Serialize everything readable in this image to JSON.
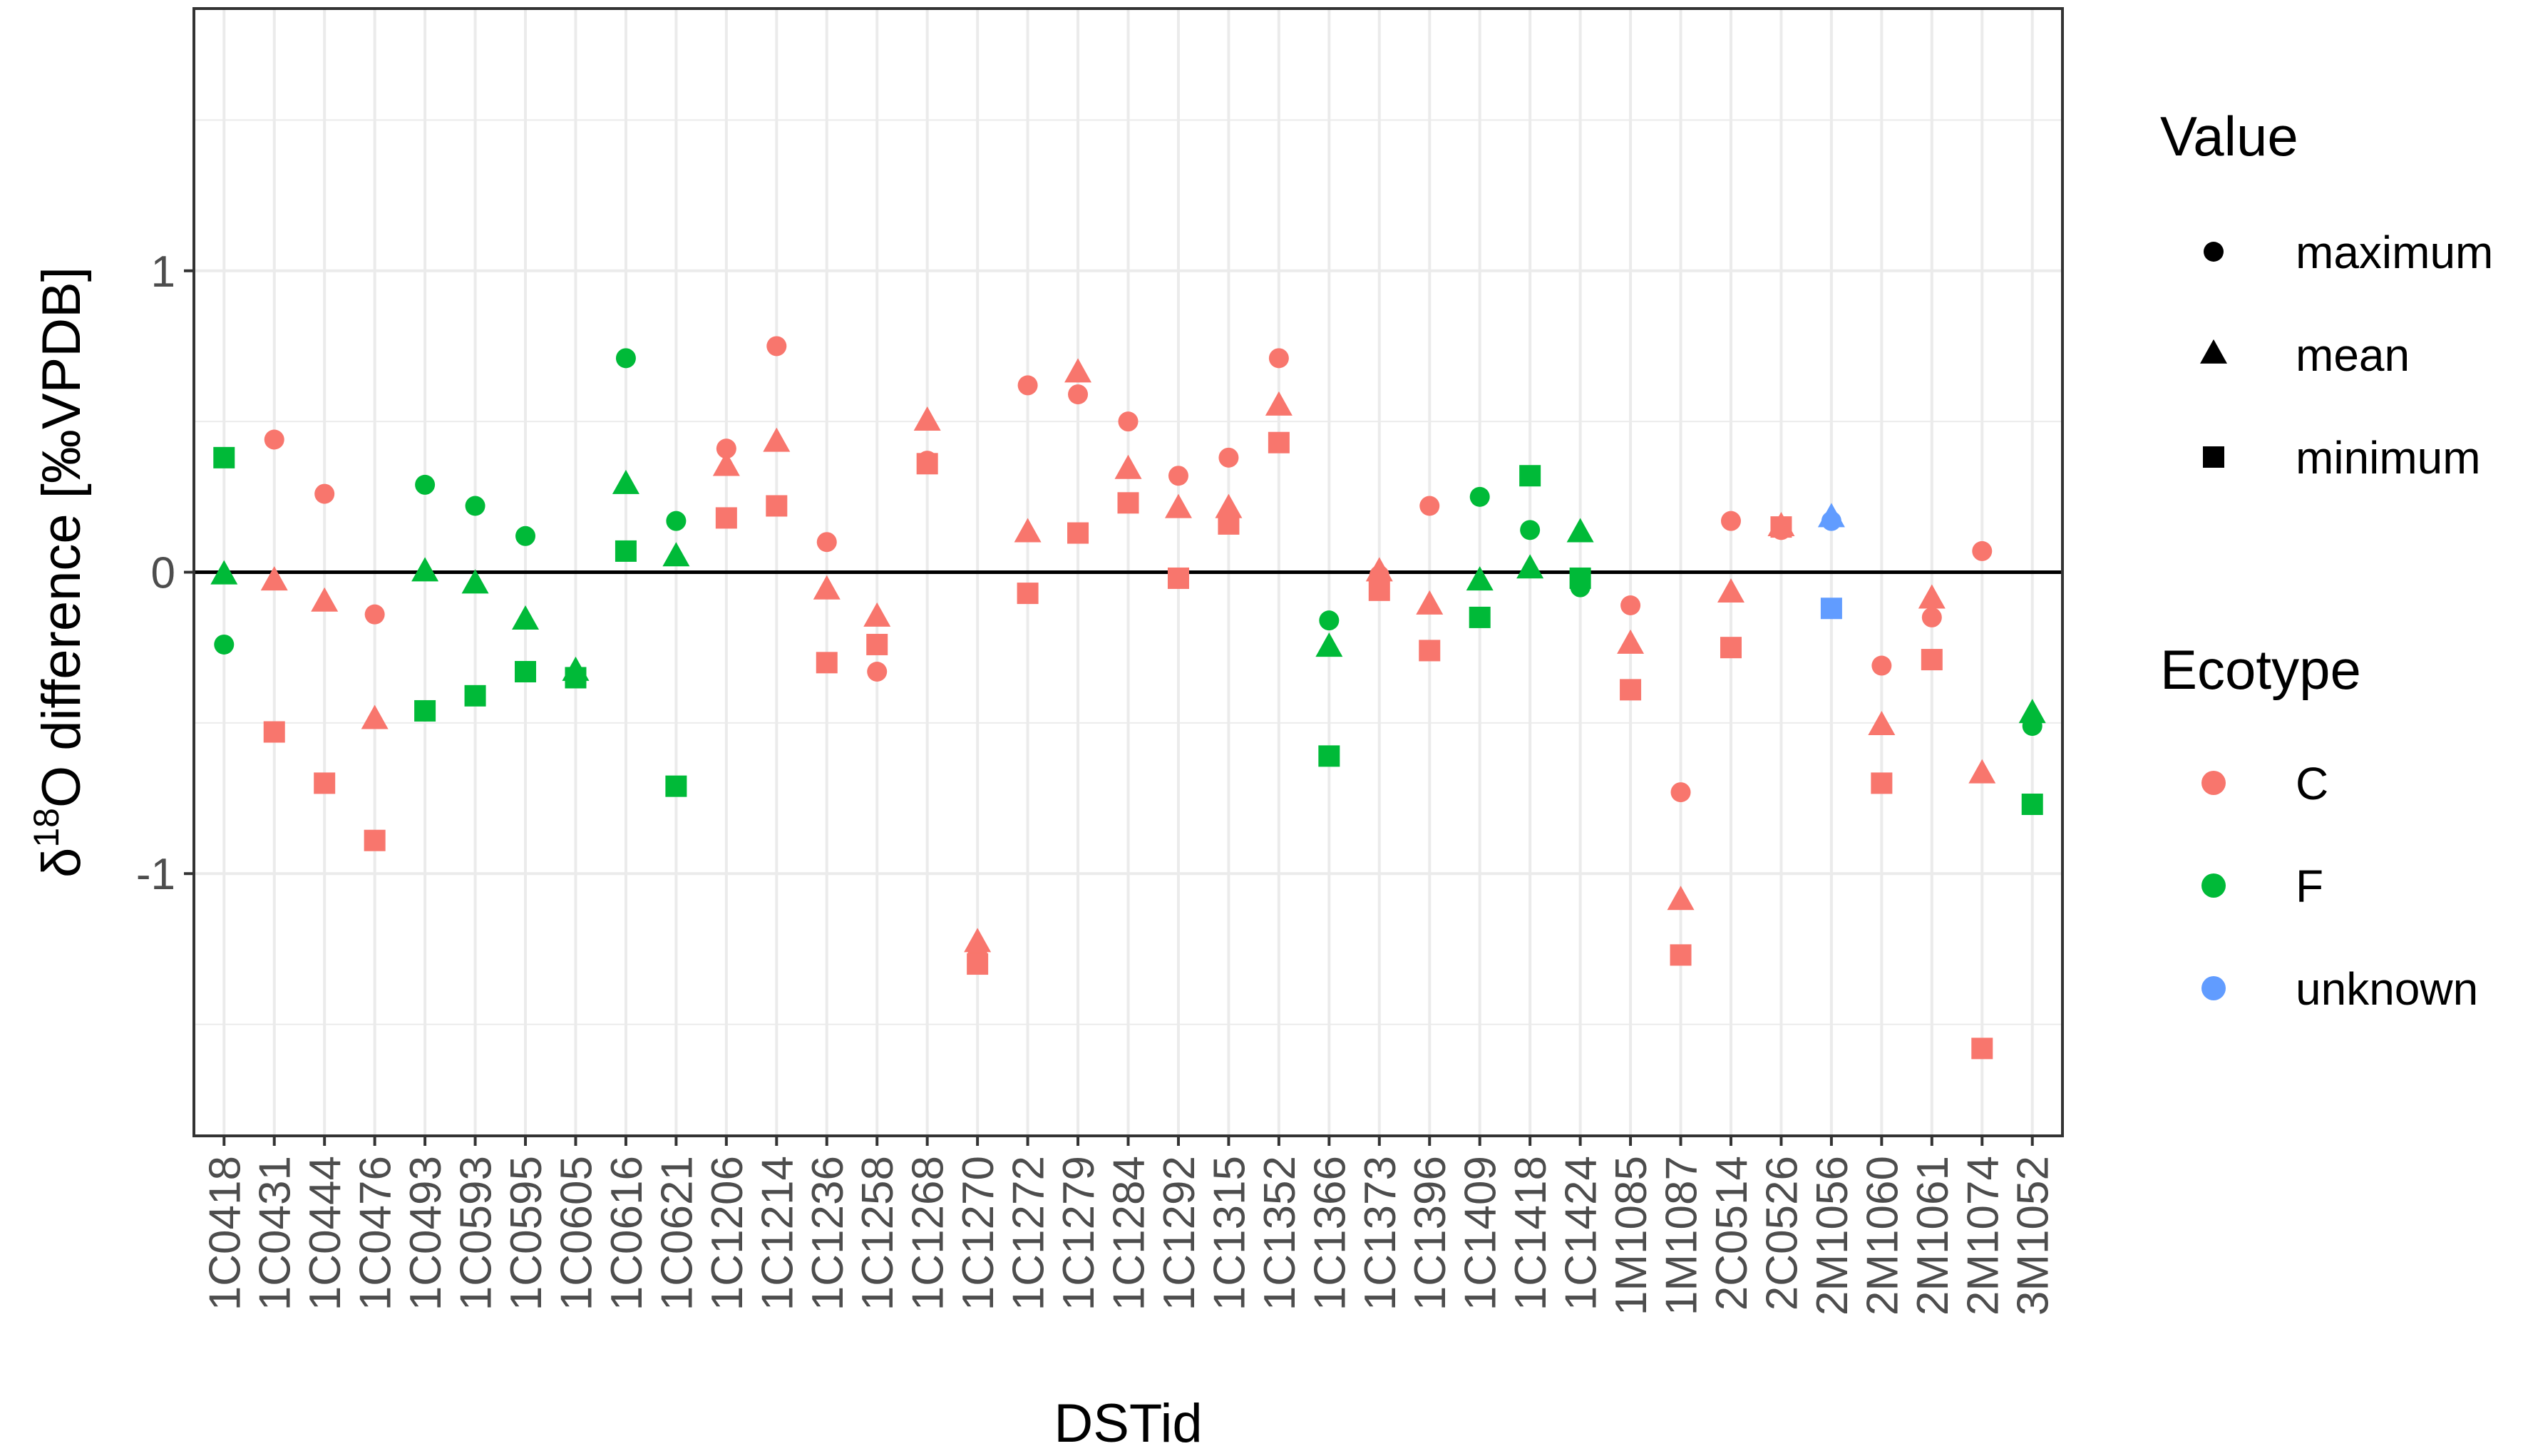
{
  "chart_data": {
    "type": "scatter",
    "xlabel": "DSTid",
    "ylabel_delta": "δ",
    "ylabel_sup": "18",
    "ylabel_rest": "O difference [‰VPDB]",
    "ylim": [
      -1.87,
      1.87
    ],
    "yticks": [
      -1,
      0,
      1
    ],
    "ytick_labels": [
      "-1",
      "0",
      "1"
    ],
    "reference_line": 0,
    "grid": true,
    "legend_position": "right",
    "categories": [
      "1C0418",
      "1C0431",
      "1C0444",
      "1C0476",
      "1C0493",
      "1C0593",
      "1C0595",
      "1C0605",
      "1C0616",
      "1C0621",
      "1C1206",
      "1C1214",
      "1C1236",
      "1C1258",
      "1C1268",
      "1C1270",
      "1C1272",
      "1C1279",
      "1C1284",
      "1C1292",
      "1C1315",
      "1C1352",
      "1C1366",
      "1C1373",
      "1C1396",
      "1C1409",
      "1C1418",
      "1C1424",
      "1M1085",
      "1M1087",
      "2C0514",
      "2C0526",
      "2M1056",
      "2M1060",
      "2M1061",
      "2M1074",
      "3M1052"
    ],
    "ecotype": [
      "F",
      "C",
      "C",
      "C",
      "F",
      "F",
      "F",
      "F",
      "F",
      "F",
      "C",
      "C",
      "C",
      "C",
      "C",
      "C",
      "C",
      "C",
      "C",
      "C",
      "C",
      "C",
      "F",
      "C",
      "C",
      "F",
      "F",
      "F",
      "C",
      "C",
      "C",
      "C",
      "unknown",
      "C",
      "C",
      "C",
      "F"
    ],
    "series": [
      {
        "name": "maximum",
        "shape": "circle",
        "values": [
          -0.24,
          0.44,
          0.26,
          -0.14,
          0.29,
          0.22,
          0.12,
          -0.35,
          0.71,
          0.17,
          0.41,
          0.75,
          0.1,
          -0.33,
          0.37,
          -1.27,
          0.62,
          0.59,
          0.5,
          0.32,
          0.38,
          0.71,
          -0.16,
          -0.01,
          0.22,
          0.25,
          0.14,
          -0.05,
          -0.11,
          -0.73,
          0.17,
          0.14,
          0.17,
          -0.31,
          -0.15,
          0.07,
          -0.51
        ]
      },
      {
        "name": "mean",
        "shape": "triangle",
        "values": [
          -0.01,
          -0.03,
          -0.1,
          -0.49,
          0.0,
          -0.04,
          -0.16,
          -0.33,
          0.29,
          0.05,
          0.35,
          0.43,
          -0.06,
          -0.15,
          0.5,
          -1.23,
          0.13,
          0.66,
          0.34,
          0.21,
          0.21,
          0.55,
          -0.25,
          0.0,
          -0.11,
          -0.03,
          0.01,
          0.13,
          -0.24,
          -1.09,
          -0.07,
          0.15,
          0.18,
          -0.51,
          -0.09,
          -0.67,
          -0.47
        ]
      },
      {
        "name": "minimum",
        "shape": "square",
        "values": [
          0.38,
          -0.53,
          -0.7,
          -0.89,
          -0.46,
          -0.41,
          -0.33,
          -0.35,
          0.07,
          -0.71,
          0.18,
          0.22,
          -0.3,
          -0.24,
          0.36,
          -1.3,
          -0.07,
          0.13,
          0.23,
          -0.02,
          0.16,
          0.43,
          -0.61,
          -0.06,
          -0.26,
          -0.15,
          0.32,
          -0.02,
          -0.39,
          -1.27,
          -0.25,
          0.15,
          -0.12,
          -0.7,
          -0.29,
          -1.58,
          -0.77
        ]
      }
    ],
    "legend": {
      "value_title": "Value",
      "value_items": [
        "maximum",
        "mean",
        "minimum"
      ],
      "ecotype_title": "Ecotype",
      "ecotype_items": [
        "C",
        "F",
        "unknown"
      ]
    },
    "colors": {
      "C": "#F8766D",
      "F": "#00BA38",
      "unknown": "#619CFF"
    }
  }
}
